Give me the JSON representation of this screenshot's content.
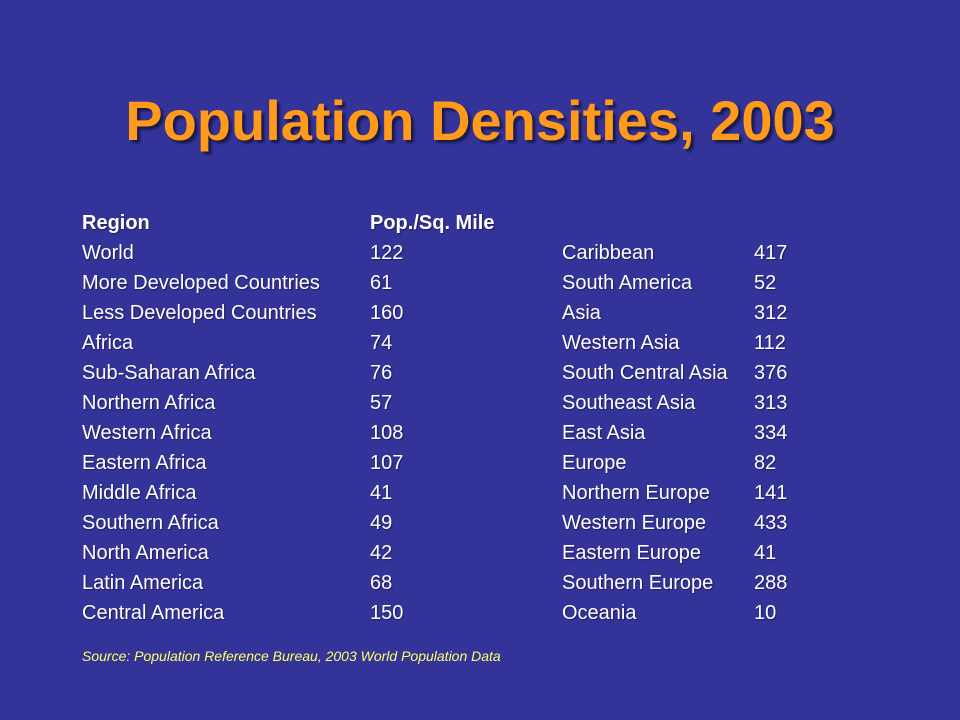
{
  "title": "Population Densities, 2003",
  "header": {
    "region": "Region",
    "density": "Pop./Sq. Mile"
  },
  "rows": [
    {
      "left_region": "World",
      "left_value": "122",
      "right_region": "Caribbean",
      "right_value": "417"
    },
    {
      "left_region": "More Developed Countries",
      "left_value": "61",
      "right_region": "South America",
      "right_value": "52"
    },
    {
      "left_region": "Less Developed Countries",
      "left_value": "160",
      "right_region": "Asia",
      "right_value": "312"
    },
    {
      "left_region": "Africa",
      "left_value": "74",
      "right_region": "Western Asia",
      "right_value": "112"
    },
    {
      "left_region": "Sub-Saharan Africa",
      "left_value": "76",
      "right_region": "South Central Asia",
      "right_value": "376"
    },
    {
      "left_region": "Northern Africa",
      "left_value": "57",
      "right_region": "Southeast Asia",
      "right_value": "313"
    },
    {
      "left_region": "Western Africa",
      "left_value": "108",
      "right_region": "East Asia",
      "right_value": "334"
    },
    {
      "left_region": "Eastern Africa",
      "left_value": "107",
      "right_region": "Europe",
      "right_value": "82"
    },
    {
      "left_region": "Middle Africa",
      "left_value": "41",
      "right_region": "Northern Europe",
      "right_value": "141"
    },
    {
      "left_region": "Southern Africa",
      "left_value": "49",
      "right_region": "Western Europe",
      "right_value": "433"
    },
    {
      "left_region": "North America",
      "left_value": "42",
      "right_region": "Eastern Europe",
      "right_value": "41"
    },
    {
      "left_region": "Latin America",
      "left_value": "68",
      "right_region": "Southern Europe",
      "right_value": "288"
    },
    {
      "left_region": "Central America",
      "left_value": "150",
      "right_region": "Oceania",
      "right_value": "10"
    }
  ],
  "source": "Source: Population Reference Bureau, 2003 World Population Data",
  "colors": {
    "background": "#333399",
    "title": "#ff9a1a",
    "text": "#ffffff",
    "source": "#ffff66"
  }
}
